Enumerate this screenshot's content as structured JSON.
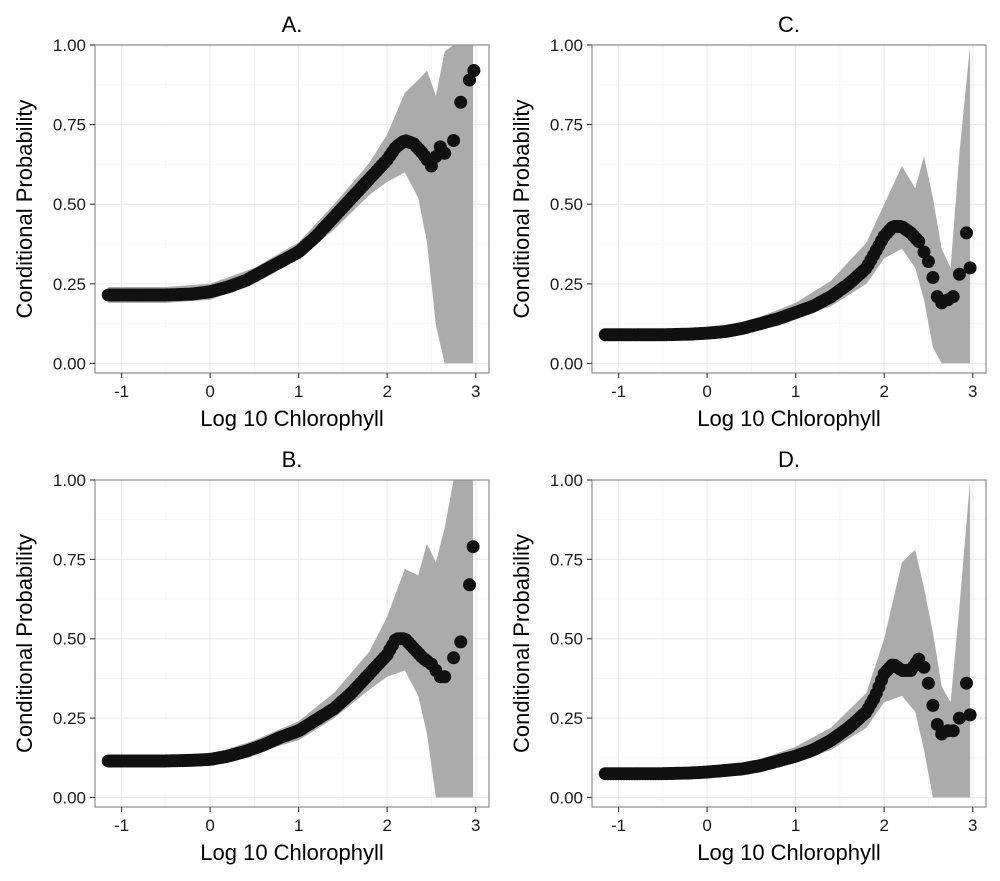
{
  "colors": {
    "band": "#ababab",
    "point": "#111111",
    "grid_major": "#ebebeb",
    "grid_minor": "#f5f5f5",
    "frame": "#8c8c8c"
  },
  "chart_data": [
    {
      "type": "scatter",
      "title": "A.",
      "xlabel": "Log 10 Chlorophyll",
      "ylabel": "Conditional Probability",
      "xlim": [
        -1.3,
        3.15
      ],
      "ylim": [
        -0.03,
        1.0
      ],
      "xticks": [
        -1,
        0,
        1,
        2,
        3
      ],
      "xtick_labels": [
        "-1",
        "0",
        "1",
        "2",
        "3"
      ],
      "yticks": [
        0.0,
        0.25,
        0.5,
        0.75,
        1.0
      ],
      "ytick_labels": [
        "0.00",
        "0.25",
        "0.50",
        "0.75",
        "1.00"
      ],
      "curve_x": [
        -1.15,
        -0.8,
        -0.5,
        -0.2,
        0.0,
        0.2,
        0.4,
        0.6,
        0.8,
        1.0,
        1.2,
        1.4,
        1.6,
        1.8,
        2.0,
        2.1,
        2.2,
        2.3,
        2.4,
        2.45
      ],
      "curve_y": [
        0.215,
        0.215,
        0.215,
        0.218,
        0.225,
        0.24,
        0.26,
        0.29,
        0.32,
        0.35,
        0.4,
        0.46,
        0.52,
        0.58,
        0.64,
        0.68,
        0.7,
        0.69,
        0.66,
        0.64
      ],
      "extra_points": [
        [
          2.5,
          0.62
        ],
        [
          2.55,
          0.65
        ],
        [
          2.6,
          0.68
        ],
        [
          2.65,
          0.66
        ],
        [
          2.75,
          0.7
        ],
        [
          2.83,
          0.82
        ],
        [
          2.93,
          0.89
        ],
        [
          2.98,
          0.92
        ]
      ],
      "band_x": [
        -1.15,
        -0.5,
        0.0,
        0.5,
        1.0,
        1.4,
        1.8,
        2.0,
        2.2,
        2.35,
        2.45,
        2.55,
        2.65,
        2.75,
        2.85,
        2.97
      ],
      "band_lower": [
        0.19,
        0.19,
        0.2,
        0.25,
        0.33,
        0.42,
        0.53,
        0.57,
        0.6,
        0.52,
        0.38,
        0.12,
        0.0,
        0.0,
        0.0,
        0.0
      ],
      "band_upper": [
        0.24,
        0.24,
        0.25,
        0.3,
        0.38,
        0.5,
        0.63,
        0.72,
        0.85,
        0.89,
        0.92,
        0.84,
        0.98,
        1.0,
        1.0,
        1.0
      ]
    },
    {
      "type": "scatter",
      "title": "C.",
      "xlabel": "Log 10 Chlorophyll",
      "ylabel": "Conditional Probability",
      "xlim": [
        -1.3,
        3.15
      ],
      "ylim": [
        -0.03,
        1.0
      ],
      "xticks": [
        -1,
        0,
        1,
        2,
        3
      ],
      "xtick_labels": [
        "-1",
        "0",
        "1",
        "2",
        "3"
      ],
      "yticks": [
        0.0,
        0.25,
        0.5,
        0.75,
        1.0
      ],
      "ytick_labels": [
        "0.00",
        "0.25",
        "0.50",
        "0.75",
        "1.00"
      ],
      "curve_x": [
        -1.15,
        -0.8,
        -0.5,
        -0.2,
        0.0,
        0.2,
        0.4,
        0.6,
        0.8,
        1.0,
        1.2,
        1.4,
        1.6,
        1.8,
        1.9,
        2.0,
        2.1,
        2.2,
        2.3,
        2.4
      ],
      "curve_y": [
        0.09,
        0.09,
        0.09,
        0.092,
        0.095,
        0.1,
        0.11,
        0.125,
        0.14,
        0.16,
        0.18,
        0.21,
        0.25,
        0.3,
        0.35,
        0.4,
        0.43,
        0.43,
        0.41,
        0.38
      ],
      "extra_points": [
        [
          2.45,
          0.35
        ],
        [
          2.5,
          0.32
        ],
        [
          2.55,
          0.27
        ],
        [
          2.6,
          0.21
        ],
        [
          2.65,
          0.19
        ],
        [
          2.72,
          0.2
        ],
        [
          2.78,
          0.21
        ],
        [
          2.85,
          0.28
        ],
        [
          2.93,
          0.41
        ],
        [
          2.97,
          0.3
        ]
      ],
      "band_x": [
        -1.15,
        -0.5,
        0.0,
        0.5,
        1.0,
        1.4,
        1.8,
        2.0,
        2.2,
        2.35,
        2.45,
        2.55,
        2.65,
        2.75,
        2.85,
        2.97
      ],
      "band_lower": [
        0.075,
        0.075,
        0.08,
        0.1,
        0.14,
        0.18,
        0.25,
        0.33,
        0.36,
        0.3,
        0.2,
        0.05,
        0.0,
        0.0,
        0.0,
        0.0
      ],
      "band_upper": [
        0.105,
        0.105,
        0.11,
        0.135,
        0.19,
        0.26,
        0.38,
        0.5,
        0.62,
        0.55,
        0.65,
        0.52,
        0.36,
        0.3,
        0.66,
        1.0
      ]
    },
    {
      "type": "scatter",
      "title": "B.",
      "xlabel": "Log 10 Chlorophyll",
      "ylabel": "Conditional Probability",
      "xlim": [
        -1.3,
        3.15
      ],
      "ylim": [
        -0.03,
        1.0
      ],
      "xticks": [
        -1,
        0,
        1,
        2,
        3
      ],
      "xtick_labels": [
        "-1",
        "0",
        "1",
        "2",
        "3"
      ],
      "yticks": [
        0.0,
        0.25,
        0.5,
        0.75,
        1.0
      ],
      "ytick_labels": [
        "0.00",
        "0.25",
        "0.50",
        "0.75",
        "1.00"
      ],
      "curve_x": [
        -1.15,
        -0.8,
        -0.5,
        -0.2,
        0.0,
        0.2,
        0.4,
        0.6,
        0.8,
        1.0,
        1.2,
        1.4,
        1.6,
        1.8,
        2.0,
        2.1,
        2.2,
        2.3,
        2.4,
        2.45
      ],
      "curve_y": [
        0.115,
        0.115,
        0.115,
        0.117,
        0.12,
        0.13,
        0.145,
        0.165,
        0.19,
        0.21,
        0.245,
        0.28,
        0.33,
        0.39,
        0.45,
        0.5,
        0.5,
        0.47,
        0.44,
        0.43
      ],
      "extra_points": [
        [
          2.5,
          0.42
        ],
        [
          2.55,
          0.4
        ],
        [
          2.6,
          0.38
        ],
        [
          2.65,
          0.38
        ],
        [
          2.75,
          0.44
        ],
        [
          2.83,
          0.49
        ],
        [
          2.93,
          0.67
        ],
        [
          2.97,
          0.79
        ]
      ],
      "band_x": [
        -1.15,
        -0.5,
        0.0,
        0.5,
        1.0,
        1.4,
        1.8,
        2.0,
        2.2,
        2.35,
        2.45,
        2.55,
        2.65,
        2.75,
        2.85,
        2.97
      ],
      "band_lower": [
        0.1,
        0.1,
        0.105,
        0.14,
        0.18,
        0.25,
        0.34,
        0.38,
        0.4,
        0.32,
        0.2,
        0.0,
        0.0,
        0.0,
        0.0,
        0.0
      ],
      "band_upper": [
        0.13,
        0.13,
        0.135,
        0.18,
        0.24,
        0.33,
        0.46,
        0.57,
        0.72,
        0.7,
        0.8,
        0.74,
        0.85,
        1.0,
        1.0,
        1.0
      ]
    },
    {
      "type": "scatter",
      "title": "D.",
      "xlabel": "Log 10 Chlorophyll",
      "ylabel": "Conditional Probability",
      "xlim": [
        -1.3,
        3.15
      ],
      "ylim": [
        -0.03,
        1.0
      ],
      "xticks": [
        -1,
        0,
        1,
        2,
        3
      ],
      "xtick_labels": [
        "-1",
        "0",
        "1",
        "2",
        "3"
      ],
      "yticks": [
        0.0,
        0.25,
        0.5,
        0.75,
        1.0
      ],
      "ytick_labels": [
        "0.00",
        "0.25",
        "0.50",
        "0.75",
        "1.00"
      ],
      "curve_x": [
        -1.15,
        -0.8,
        -0.5,
        -0.2,
        0.0,
        0.2,
        0.4,
        0.6,
        0.8,
        1.0,
        1.2,
        1.4,
        1.6,
        1.8,
        1.9,
        2.0,
        2.1,
        2.2,
        2.3,
        2.4
      ],
      "curve_y": [
        0.075,
        0.075,
        0.075,
        0.077,
        0.08,
        0.085,
        0.09,
        0.1,
        0.115,
        0.13,
        0.15,
        0.18,
        0.22,
        0.27,
        0.32,
        0.39,
        0.42,
        0.4,
        0.4,
        0.44
      ],
      "extra_points": [
        [
          2.45,
          0.41
        ],
        [
          2.5,
          0.36
        ],
        [
          2.55,
          0.29
        ],
        [
          2.6,
          0.23
        ],
        [
          2.65,
          0.2
        ],
        [
          2.72,
          0.21
        ],
        [
          2.78,
          0.21
        ],
        [
          2.85,
          0.25
        ],
        [
          2.93,
          0.36
        ],
        [
          2.97,
          0.26
        ]
      ],
      "band_x": [
        -1.15,
        -0.5,
        0.0,
        0.5,
        1.0,
        1.4,
        1.8,
        2.0,
        2.2,
        2.35,
        2.45,
        2.55,
        2.65,
        2.75,
        2.85,
        2.97
      ],
      "band_lower": [
        0.065,
        0.065,
        0.07,
        0.08,
        0.11,
        0.15,
        0.22,
        0.3,
        0.32,
        0.27,
        0.15,
        0.0,
        0.0,
        0.0,
        0.0,
        0.0
      ],
      "band_upper": [
        0.09,
        0.09,
        0.095,
        0.11,
        0.16,
        0.22,
        0.33,
        0.5,
        0.74,
        0.78,
        0.66,
        0.52,
        0.35,
        0.3,
        0.6,
        1.0
      ]
    }
  ]
}
